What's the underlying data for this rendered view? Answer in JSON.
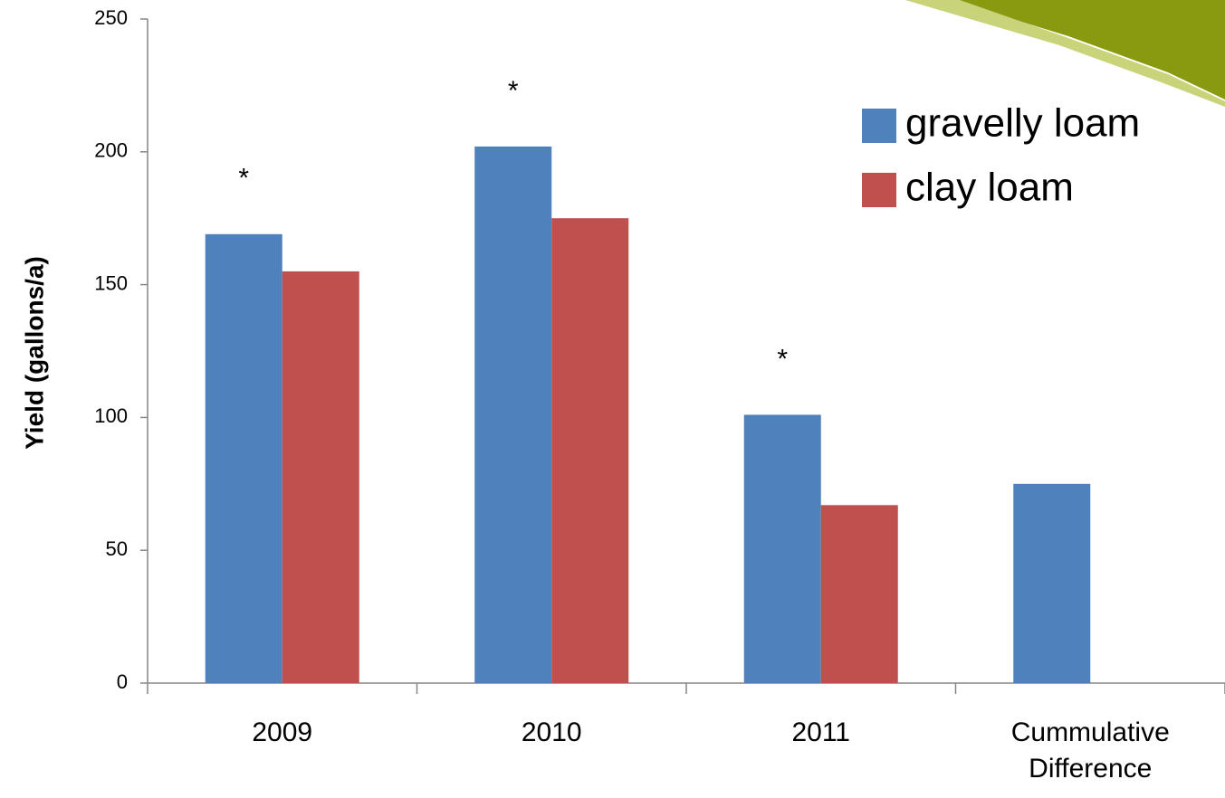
{
  "chart_data": {
    "type": "bar",
    "y_label": "Yield (gallons/a)",
    "categories": [
      "2009",
      "2010",
      "2011",
      "Cummulative Difference"
    ],
    "series": [
      {
        "name": "gravelly loam",
        "color": "#4f81bd",
        "values": [
          169,
          202,
          101,
          75
        ]
      },
      {
        "name": "clay loam",
        "color": "#c0504d",
        "values": [
          155,
          175,
          67,
          null
        ]
      }
    ],
    "annotations": [
      {
        "text": "*",
        "category": "2009"
      },
      {
        "text": "*",
        "category": "2010"
      },
      {
        "text": "*",
        "category": "2011"
      }
    ],
    "ylim": [
      0,
      250
    ],
    "yticks": [
      0,
      50,
      100,
      150,
      200,
      250
    ],
    "legend": "upper right"
  }
}
